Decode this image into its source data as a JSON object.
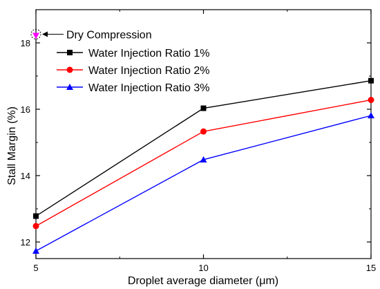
{
  "chart_data": {
    "type": "line",
    "xlabel": "Droplet average diameter (μm)",
    "ylabel": "Stall Margin (%)",
    "x": [
      5,
      10,
      15
    ],
    "xlim": [
      5,
      15
    ],
    "ylim": [
      11.5,
      19.0
    ],
    "xticks": [
      "5",
      "10",
      "15"
    ],
    "yticks": [
      "12",
      "14",
      "16",
      "18"
    ],
    "grid": false,
    "legend_position": "top-left",
    "series": [
      {
        "name": "Water Injection Ratio 1%",
        "color": "#000000",
        "marker": "square",
        "values": [
          12.78,
          16.03,
          16.86
        ]
      },
      {
        "name": "Water Injection Ratio 2%",
        "color": "#ff0000",
        "marker": "circle",
        "values": [
          12.48,
          15.33,
          16.28
        ]
      },
      {
        "name": "Water Injection Ratio 3%",
        "color": "#0000ff",
        "marker": "triangle",
        "values": [
          11.73,
          14.48,
          15.81
        ]
      }
    ],
    "annotation": {
      "label": "Dry Compression",
      "x": 5,
      "y": 18.22,
      "color": "#ff00ff",
      "marker": "triangle-down"
    }
  }
}
